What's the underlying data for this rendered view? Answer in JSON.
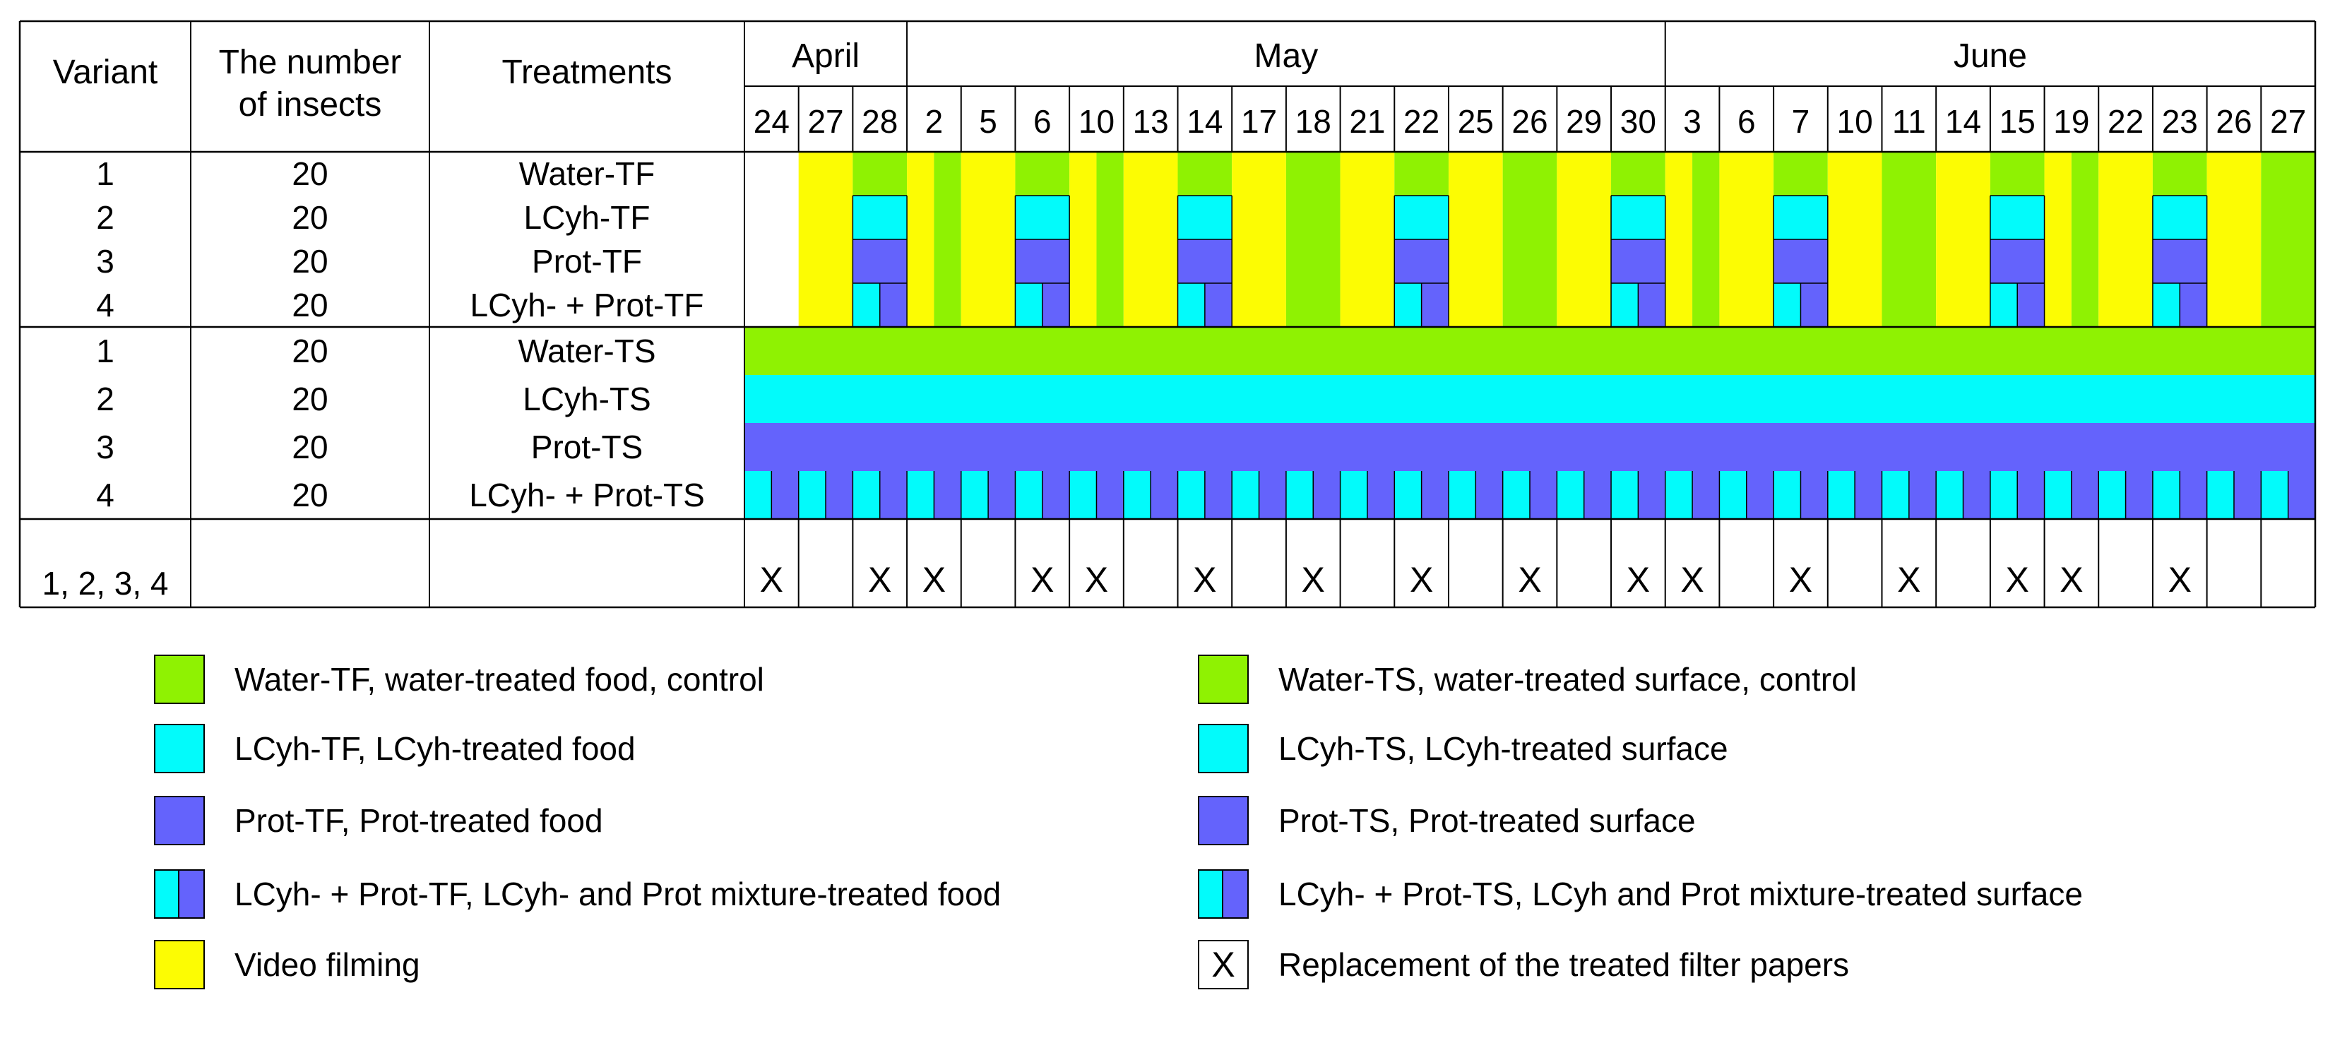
{
  "colors": {
    "water": "#8ff202",
    "lcyh": "#02fbfb",
    "prot": "#6463fc",
    "video": "#fcfc03",
    "line": "#000000"
  },
  "header": {
    "variant": "Variant",
    "insects_line1": "The number",
    "insects_line2": "of insects",
    "treatments": "Treatments"
  },
  "months": [
    {
      "name": "April",
      "span": 3
    },
    {
      "name": "May",
      "span": 14
    },
    {
      "name": "June",
      "span": 12
    }
  ],
  "days": [
    "24",
    "27",
    "28",
    "2",
    "5",
    "6",
    "10",
    "13",
    "14",
    "17",
    "18",
    "21",
    "22",
    "25",
    "26",
    "29",
    "30",
    "3",
    "6",
    "7",
    "10",
    "11",
    "14",
    "15",
    "19",
    "22",
    "23",
    "26",
    "27"
  ],
  "tf_rows": [
    {
      "variant": "1",
      "insects": "20",
      "treatment": "Water-TF"
    },
    {
      "variant": "2",
      "insects": "20",
      "treatment": "LCyh-TF"
    },
    {
      "variant": "3",
      "insects": "20",
      "treatment": "Prot-TF"
    },
    {
      "variant": "4",
      "insects": "20",
      "treatment": "LCyh- + Prot-TF"
    }
  ],
  "ts_rows": [
    {
      "variant": "1",
      "insects": "20",
      "treatment": "Water-TS"
    },
    {
      "variant": "2",
      "insects": "20",
      "treatment": "LCyh-TS"
    },
    {
      "variant": "3",
      "insects": "20",
      "treatment": "Prot-TS"
    },
    {
      "variant": "4",
      "insects": "20",
      "treatment": "LCyh- + Prot-TS"
    }
  ],
  "replacement_row": {
    "variant": "1, 2, 3, 4"
  },
  "tf_schedule": [
    "blank",
    "video",
    "treat",
    "split",
    "video",
    "treat",
    "split",
    "video",
    "treat",
    "video",
    "water",
    "video",
    "treat",
    "video",
    "water",
    "video",
    "treat",
    "split",
    "video",
    "treat",
    "video",
    "water",
    "video",
    "treat",
    "split",
    "video",
    "treat",
    "video",
    "water"
  ],
  "replacement_marks": [
    "X",
    "",
    "X",
    "X",
    "",
    "X",
    "X",
    "",
    "X",
    "",
    "X",
    "",
    "X",
    "",
    "X",
    "",
    "X",
    "X",
    "",
    "X",
    "",
    "X",
    "",
    "X",
    "X",
    "",
    "X",
    "",
    ""
  ],
  "legend": [
    {
      "type": "solid",
      "color": "water",
      "label": "Water-TF, water-treated food, control"
    },
    {
      "type": "solid",
      "color": "lcyh",
      "label": "LCyh-TF, LCyh-treated food"
    },
    {
      "type": "solid",
      "color": "prot",
      "label": "Prot-TF, Prot-treated food"
    },
    {
      "type": "split",
      "label": "LCyh- + Prot-TF, LCyh- and Prot mixture-treated food"
    },
    {
      "type": "solid",
      "color": "video",
      "label": "Video filming"
    },
    {
      "type": "solid",
      "color": "water",
      "label": "Water-TS, water-treated surface, control"
    },
    {
      "type": "solid",
      "color": "lcyh",
      "label": "LCyh-TS, LCyh-treated surface"
    },
    {
      "type": "solid",
      "color": "prot",
      "label": "Prot-TS, Prot-treated surface"
    },
    {
      "type": "split",
      "label": "LCyh- + Prot-TS, LCyh and Prot mixture-treated surface"
    },
    {
      "type": "cross",
      "mark": "X",
      "label": "Replacement of the treated filter papers"
    }
  ]
}
